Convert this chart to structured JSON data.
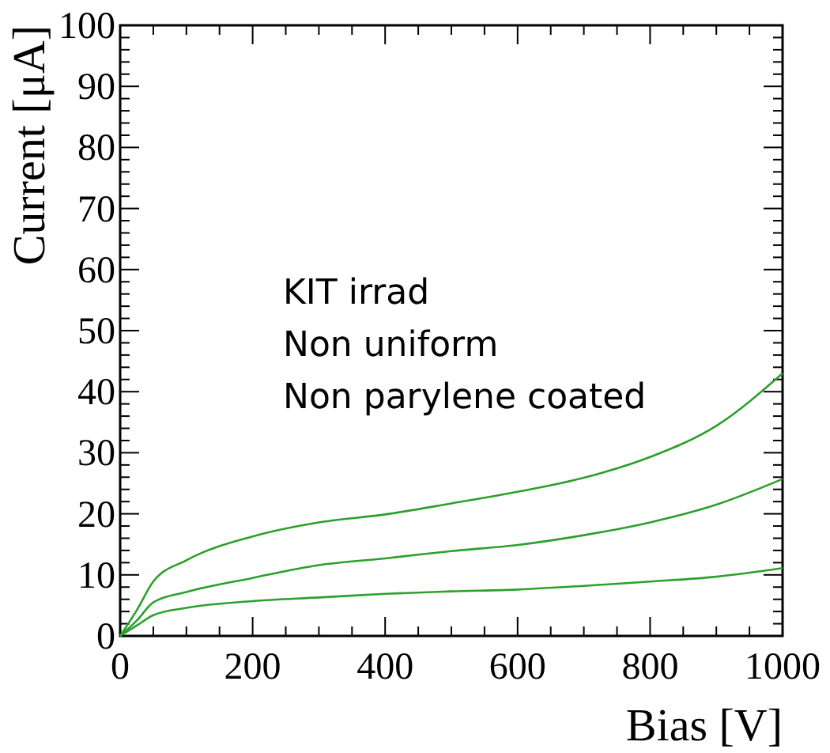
{
  "chart_data": {
    "type": "line",
    "xlabel": "Bias [V]",
    "ylabel": "Current [μA]",
    "x": [
      0,
      25,
      50,
      100,
      200,
      300,
      400,
      500,
      600,
      700,
      800,
      900,
      1000
    ],
    "series": [
      {
        "color": "#2ca02c",
        "values": [
          0,
          4.2,
          8.9,
          12.4,
          16.3,
          18.6,
          19.9,
          21.7,
          23.6,
          25.9,
          29.3,
          34.4,
          43
        ]
      },
      {
        "color": "#2ca02c",
        "values": [
          0,
          2.5,
          5.5,
          7.2,
          9.5,
          11.6,
          12.7,
          13.9,
          14.9,
          16.5,
          18.6,
          21.5,
          25.7
        ]
      },
      {
        "color": "#2ca02c",
        "values": [
          0,
          1.7,
          3.4,
          4.6,
          5.7,
          6.3,
          6.9,
          7.3,
          7.6,
          8.2,
          8.9,
          9.7,
          11.1
        ]
      }
    ],
    "xlim": [
      0,
      1000
    ],
    "xticks": [
      0,
      200,
      400,
      600,
      800,
      1000
    ],
    "ylim": [
      0,
      100
    ],
    "yticks": [
      0,
      10,
      20,
      30,
      40,
      50,
      60,
      70,
      80,
      90,
      100
    ],
    "annotations": [
      "KIT irrad",
      "Non uniform",
      "Non parylene coated"
    ],
    "grid": false,
    "marker": "none",
    "line_style": "solid"
  }
}
